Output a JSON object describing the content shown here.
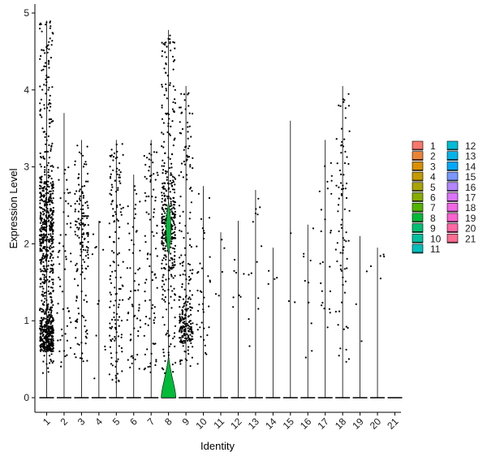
{
  "chart_data": {
    "type": "violin",
    "xlabel": "Identity",
    "ylabel": "Expression Level",
    "ylim": [
      -0.25,
      5.15
    ],
    "yticks": [
      "0",
      "1",
      "2",
      "3",
      "4",
      "5"
    ],
    "grid": false,
    "legend_position": "right",
    "legend_columns": 2,
    "categories": [
      "1",
      "2",
      "3",
      "4",
      "5",
      "6",
      "7",
      "8",
      "9",
      "10",
      "11",
      "12",
      "13",
      "14",
      "15",
      "16",
      "17",
      "18",
      "19",
      "20",
      "21"
    ],
    "colors": [
      "#F8766D",
      "#EB8335",
      "#DA8F00",
      "#C49A00",
      "#A9A400",
      "#86AC00",
      "#53B400",
      "#00BA38",
      "#00BF74",
      "#00C19F",
      "#00C0BB",
      "#00BCD4",
      "#00B4EA",
      "#00A9FF",
      "#7997FF",
      "#B385FF",
      "#DB72FB",
      "#F265E6",
      "#FD61D1",
      "#FF67A4",
      "#FF6C92"
    ],
    "series": [
      {
        "name": "1",
        "max": 4.9,
        "points": 900,
        "band": [
          0.3,
          4.9
        ]
      },
      {
        "name": "2",
        "max": 3.7,
        "points": 60,
        "band": [
          0.4,
          3.0
        ]
      },
      {
        "name": "3",
        "max": 3.35,
        "points": 160,
        "band": [
          0.4,
          3.3
        ]
      },
      {
        "name": "4",
        "max": 2.3,
        "points": 12,
        "band": [
          0.2,
          2.3
        ]
      },
      {
        "name": "5",
        "max": 3.35,
        "points": 150,
        "band": [
          0.2,
          3.3
        ]
      },
      {
        "name": "6",
        "max": 2.9,
        "points": 60,
        "band": [
          0.3,
          2.8
        ]
      },
      {
        "name": "7",
        "max": 3.35,
        "points": 90,
        "band": [
          0.3,
          3.3
        ]
      },
      {
        "name": "8",
        "max": 4.78,
        "points": 420,
        "band": [
          0.3,
          4.78
        ]
      },
      {
        "name": "9",
        "max": 4.05,
        "points": 260,
        "band": [
          0.4,
          4.0
        ]
      },
      {
        "name": "10",
        "max": 2.75,
        "points": 40,
        "band": [
          0.4,
          2.7
        ]
      },
      {
        "name": "11",
        "max": 2.15,
        "points": 5,
        "band": [
          1.2,
          2.1
        ]
      },
      {
        "name": "12",
        "max": 2.3,
        "points": 8,
        "band": [
          1.1,
          2.3
        ]
      },
      {
        "name": "13",
        "max": 2.7,
        "points": 14,
        "band": [
          0.5,
          2.7
        ]
      },
      {
        "name": "14",
        "max": 1.95,
        "points": 4,
        "band": [
          1.3,
          1.9
        ]
      },
      {
        "name": "15",
        "max": 3.6,
        "points": 3,
        "band": [
          1.1,
          3.6
        ]
      },
      {
        "name": "16",
        "max": 2.25,
        "points": 10,
        "band": [
          0.5,
          2.2
        ]
      },
      {
        "name": "17",
        "max": 3.35,
        "points": 25,
        "band": [
          0.6,
          3.3
        ]
      },
      {
        "name": "18",
        "max": 4.05,
        "points": 80,
        "band": [
          0.4,
          4.0
        ]
      },
      {
        "name": "19",
        "max": 2.1,
        "points": 3,
        "band": [
          0.5,
          2.1
        ]
      },
      {
        "name": "20",
        "max": 1.95,
        "points": 5,
        "band": [
          1.5,
          1.9
        ]
      },
      {
        "name": "21",
        "max": 0.0,
        "points": 0,
        "band": [
          0,
          0
        ]
      }
    ]
  }
}
